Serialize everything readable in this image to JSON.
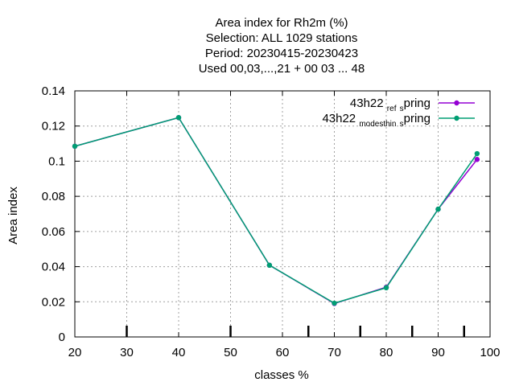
{
  "chart_data": {
    "type": "line",
    "title_lines": [
      "Area index  for Rh2m (%)",
      "Selection: ALL   1029 stations",
      "Period: 20230415-20230423",
      "Used  00,03,...,21  + 00 03 ... 48"
    ],
    "xlabel": "classes %",
    "ylabel": "Area index",
    "xlim": [
      20,
      100
    ],
    "ylim": [
      0,
      0.14
    ],
    "x_ticks": [
      "20",
      "30",
      "40",
      "50",
      "60",
      "70",
      "80",
      "90",
      "100"
    ],
    "y_ticks": [
      "0",
      "0.02",
      "0.04",
      "0.06",
      "0.08",
      "0.1",
      "0.12",
      "0.14"
    ],
    "grid": true,
    "legend_position": "top-right",
    "series": [
      {
        "name": "43h22 ref spring",
        "legend_parts": [
          "43h22 ",
          "ref",
          "s",
          "pring"
        ],
        "color": "#9400d3",
        "x": [
          20,
          40,
          57.5,
          70,
          80,
          90,
          97.5
        ],
        "y": [
          0.1085,
          0.1248,
          0.0408,
          0.019,
          0.0283,
          0.0727,
          0.101
        ]
      },
      {
        "name": "43h22 modesthin spring",
        "legend_parts": [
          "43h22 ",
          "modesthin",
          "s",
          "pring"
        ],
        "color": "#009e73",
        "x": [
          20,
          40,
          57.5,
          70,
          80,
          90,
          97.5
        ],
        "y": [
          0.1085,
          0.1248,
          0.0408,
          0.0192,
          0.028,
          0.0727,
          0.1043
        ]
      }
    ]
  }
}
